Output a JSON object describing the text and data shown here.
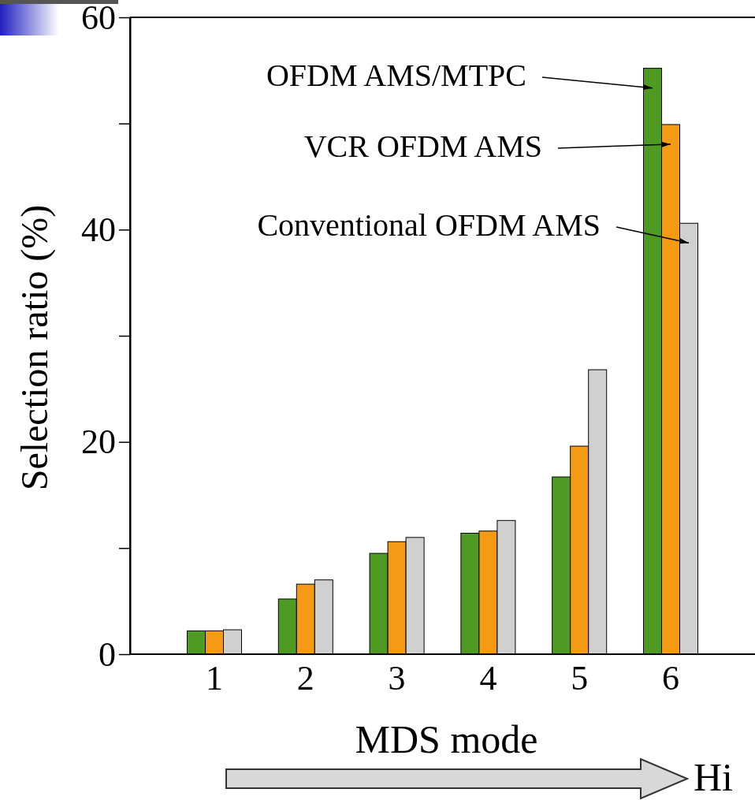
{
  "chart_data": {
    "type": "bar",
    "categories": [
      "1",
      "2",
      "3",
      "4",
      "5",
      "6"
    ],
    "series": [
      {
        "name": "OFDM AMS/MTPC",
        "color": "#4e9a22",
        "values": [
          2.2,
          5.2,
          9.5,
          11.4,
          16.7,
          55.2
        ]
      },
      {
        "name": "VCR OFDM AMS",
        "color": "#f59a14",
        "values": [
          2.2,
          6.6,
          10.6,
          11.6,
          19.6,
          49.9
        ]
      },
      {
        "name": "Conventional OFDM AMS",
        "color": "#d0d0d0",
        "values": [
          2.3,
          7.0,
          11.0,
          12.6,
          26.8,
          40.6
        ]
      }
    ],
    "ylim": [
      0,
      60
    ],
    "yticks": [
      0,
      {
        "value": 10,
        "label": null
      },
      20,
      {
        "value": 30,
        "label": null
      },
      40,
      {
        "value": 50,
        "label": null
      },
      60
    ],
    "xlabel": "MDS mode",
    "ylabel": "Selection ratio (%)",
    "annotations": [
      "Hi"
    ],
    "legend": "top right",
    "grid": false
  }
}
